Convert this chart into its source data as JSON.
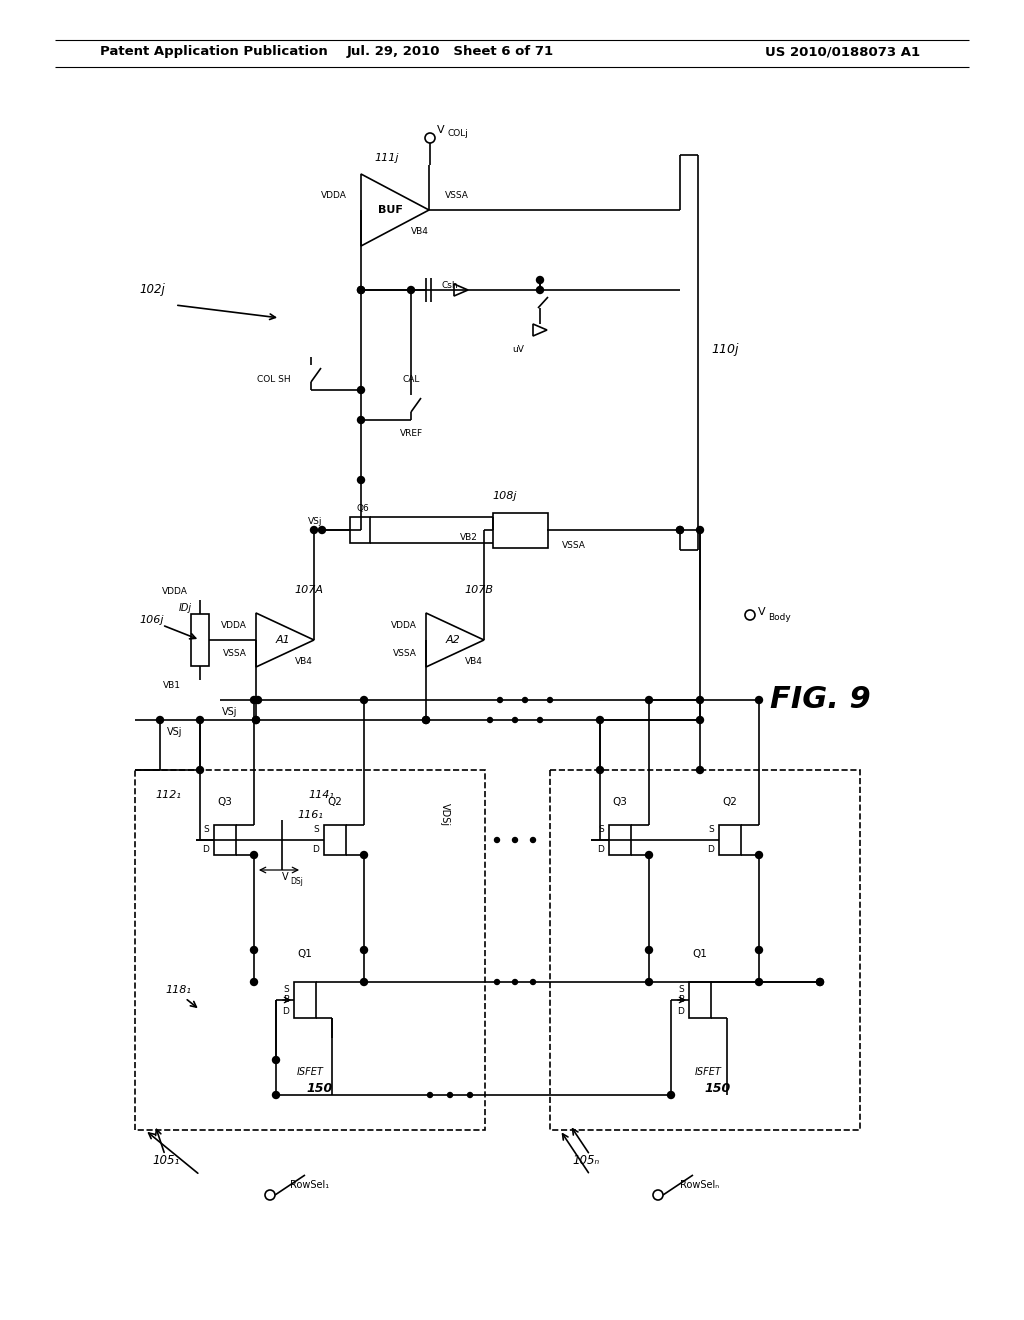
{
  "bg": "#ffffff",
  "header_left": "Patent Application Publication",
  "header_mid": "Jul. 29, 2010   Sheet 6 of 71",
  "header_right": "US 2010/0188073 A1",
  "fig_label": "FIG. 9"
}
